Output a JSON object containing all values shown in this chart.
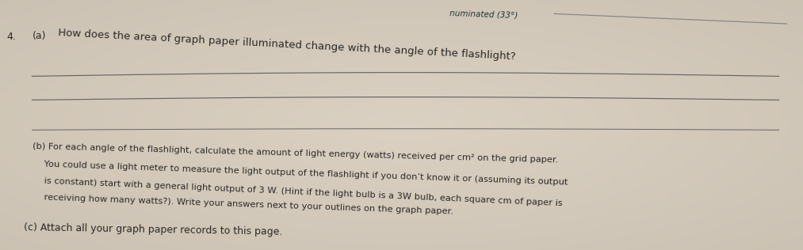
{
  "background_color_top": "#c8bfb5",
  "background_color_mid": "#d4cbc3",
  "background_color_bot": "#cec6be",
  "top_label": "numinated (33°)",
  "question_a_number": "4.",
  "question_a_prefix": "(a)",
  "question_a_text": "How does the area of graph paper illuminated change with the angle of the flashlight?",
  "question_b_prefix": "(b)",
  "question_b_line1": "For each angle of the flashlight, calculate the amount of light energy (watts) received per cm² on the grid paper.",
  "question_b_line2": "You could use a light meter to measure the light output of the flashlight if you don’t know it or (assuming its output",
  "question_b_line3": "is constant) start with a general light output of 3 W. (Hint if the light bulb is a 3W bulb, each square cm of paper is",
  "question_b_line4": "receiving how many watts?). Write your answers next to your outlines on the graph paper.",
  "question_c_prefix": "(c)",
  "question_c_text": "Attach all your graph paper records to this page.",
  "text_color": "#2a2a2a",
  "line_color": "#666666",
  "top_line_color": "#888888",
  "font_size_main": 9.0,
  "font_size_small": 8.2,
  "font_size_label": 7.5
}
